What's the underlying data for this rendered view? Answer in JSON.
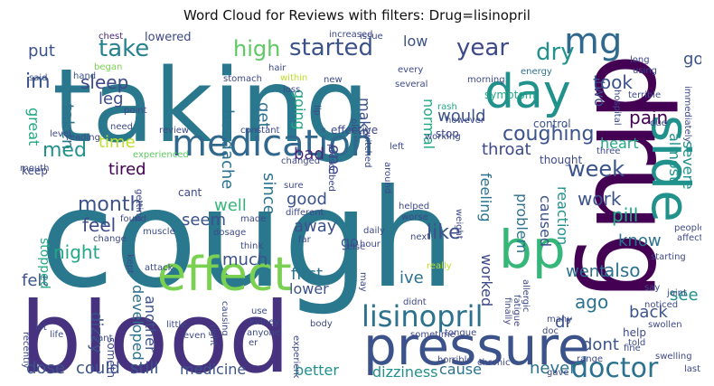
{
  "chart_data": {
    "type": "wordcloud",
    "title": "Word Cloud for Reviews with filters: Drug=lisinopril",
    "colormap": "viridis",
    "background": "#ffffff",
    "words": [
      {
        "text": "cough",
        "color": "#2a788e"
      },
      {
        "text": "taking",
        "color": "#2a788e"
      },
      {
        "text": "blood",
        "color": "#46327e"
      },
      {
        "text": "drug",
        "color": "#440154"
      },
      {
        "text": "pressure",
        "color": "#3b528b"
      },
      {
        "text": "medication",
        "color": "#31688e"
      },
      {
        "text": "effect",
        "color": "#7ad151"
      },
      {
        "text": "day",
        "color": "#21918c"
      },
      {
        "text": "side",
        "color": "#21918c"
      },
      {
        "text": "bp",
        "color": "#35b779"
      },
      {
        "text": "mg",
        "color": "#31688e"
      },
      {
        "text": "lisinopril",
        "color": "#2c728e"
      },
      {
        "text": "doctor",
        "color": "#2c728e"
      },
      {
        "text": "coughing",
        "color": "#3b528b"
      },
      {
        "text": "started",
        "color": "#3b528b"
      },
      {
        "text": "year",
        "color": "#3e4989"
      },
      {
        "text": "dry",
        "color": "#21918c"
      },
      {
        "text": "pain",
        "color": "#440154"
      },
      {
        "text": "take",
        "color": "#26828e"
      },
      {
        "text": "week",
        "color": "#3b528b"
      },
      {
        "text": "month",
        "color": "#3b528b"
      },
      {
        "text": "high",
        "color": "#5ec962"
      },
      {
        "text": "sleep",
        "color": "#3e4989"
      },
      {
        "text": "headache",
        "color": "#2c728e"
      },
      {
        "text": "im",
        "color": "#3b528b"
      },
      {
        "text": "put",
        "color": "#3b528b"
      },
      {
        "text": "leg",
        "color": "#3e4989"
      },
      {
        "text": "taken",
        "color": "#2c728e"
      },
      {
        "text": "med",
        "color": "#21918c"
      },
      {
        "text": "great",
        "color": "#22a884"
      },
      {
        "text": "time",
        "color": "#bddf26"
      },
      {
        "text": "feel",
        "color": "#3e4989"
      },
      {
        "text": "tired",
        "color": "#440154"
      },
      {
        "text": "well",
        "color": "#35b779"
      },
      {
        "text": "seem",
        "color": "#3b528b"
      },
      {
        "text": "away",
        "color": "#3b528b"
      },
      {
        "text": "good",
        "color": "#3b528b"
      },
      {
        "text": "bad",
        "color": "#482878"
      },
      {
        "text": "like",
        "color": "#3b528b"
      },
      {
        "text": "one",
        "color": "#3e4989"
      },
      {
        "text": "since",
        "color": "#2c728e"
      },
      {
        "text": "get",
        "color": "#2c728e"
      },
      {
        "text": "going",
        "color": "#22a884"
      },
      {
        "text": "make",
        "color": "#3b528b"
      },
      {
        "text": "would",
        "color": "#3b528b"
      },
      {
        "text": "normal",
        "color": "#22a884"
      },
      {
        "text": "throat",
        "color": "#3e4989"
      },
      {
        "text": "heart",
        "color": "#22a884"
      },
      {
        "text": "took",
        "color": "#3b528b"
      },
      {
        "text": "got",
        "color": "#3b528b"
      },
      {
        "text": "two",
        "color": "#3e4989"
      },
      {
        "text": "almost",
        "color": "#21918c"
      },
      {
        "text": "severe",
        "color": "#21918c"
      },
      {
        "text": "work",
        "color": "#3b528b"
      },
      {
        "text": "pill",
        "color": "#22a884"
      },
      {
        "text": "know",
        "color": "#2c728e"
      },
      {
        "text": "reaction",
        "color": "#21918c"
      },
      {
        "text": "caused",
        "color": "#3b528b"
      },
      {
        "text": "problem",
        "color": "#2c728e"
      },
      {
        "text": "feeling",
        "color": "#2c728e"
      },
      {
        "text": "worked",
        "color": "#3e4989"
      },
      {
        "text": "also",
        "color": "#2c728e"
      },
      {
        "text": "went",
        "color": "#2c728e"
      },
      {
        "text": "ago",
        "color": "#2c728e"
      },
      {
        "text": "dr",
        "color": "#3b528b"
      },
      {
        "text": "dont",
        "color": "#3b528b"
      },
      {
        "text": "back",
        "color": "#3b528b"
      },
      {
        "text": "see",
        "color": "#21918c"
      },
      {
        "text": "never",
        "color": "#2c728e"
      },
      {
        "text": "cause",
        "color": "#2c728e"
      },
      {
        "text": "dizziness",
        "color": "#21918c"
      },
      {
        "text": "better",
        "color": "#21918c"
      },
      {
        "text": "medicine",
        "color": "#3b528b"
      },
      {
        "text": "still",
        "color": "#3b528b"
      },
      {
        "text": "could",
        "color": "#3b528b"
      },
      {
        "text": "dose",
        "color": "#3b528b"
      },
      {
        "text": "dizzy",
        "color": "#3b528b"
      },
      {
        "text": "another",
        "color": "#3b528b"
      },
      {
        "text": "developed",
        "color": "#2c728e"
      },
      {
        "text": "night",
        "color": "#22a884"
      },
      {
        "text": "felt",
        "color": "#3b528b"
      },
      {
        "text": "stopped",
        "color": "#22a884"
      },
      {
        "text": "much",
        "color": "#3b528b"
      },
      {
        "text": "first",
        "color": "#2c728e"
      },
      {
        "text": "lower",
        "color": "#3b528b"
      },
      {
        "text": "ive",
        "color": "#2c728e"
      },
      {
        "text": "go",
        "color": "#3b528b"
      },
      {
        "text": "cant",
        "color": "#3e4989"
      },
      {
        "text": "keep",
        "color": "#3e4989"
      },
      {
        "text": "lowered",
        "color": "#3e4989"
      },
      {
        "text": "chest",
        "color": "#482878"
      },
      {
        "text": "began",
        "color": "#7ad151"
      },
      {
        "text": "said",
        "color": "#3b528b"
      },
      {
        "text": "hand",
        "color": "#3b528b"
      },
      {
        "text": "stomach",
        "color": "#3e4989"
      },
      {
        "text": "within",
        "color": "#bddf26"
      },
      {
        "text": "issue",
        "color": "#3e4989"
      },
      {
        "text": "low",
        "color": "#3b528b"
      },
      {
        "text": "every",
        "color": "#3e4989"
      },
      {
        "text": "energy",
        "color": "#2c728e"
      },
      {
        "text": "morning",
        "color": "#3e4989"
      },
      {
        "text": "long",
        "color": "#3e4989"
      },
      {
        "text": "using",
        "color": "#3e4989"
      },
      {
        "text": "symptom",
        "color": "#22a884"
      },
      {
        "text": "several",
        "color": "#3e4989"
      },
      {
        "text": "rash",
        "color": "#22a884"
      },
      {
        "text": "however",
        "color": "#3e4989"
      },
      {
        "text": "working",
        "color": "#3e4989"
      },
      {
        "text": "control",
        "color": "#3b528b"
      },
      {
        "text": "hospital",
        "color": "#3e4989"
      },
      {
        "text": "terrible",
        "color": "#3e4989"
      },
      {
        "text": "due",
        "color": "#3e4989"
      },
      {
        "text": "immediately",
        "color": "#3e4989"
      },
      {
        "text": "point",
        "color": "#3e4989"
      },
      {
        "text": "reading",
        "color": "#3e4989"
      },
      {
        "text": "need",
        "color": "#3e4989"
      },
      {
        "text": "level",
        "color": "#3e4989"
      },
      {
        "text": "review",
        "color": "#3e4989"
      },
      {
        "text": "constant",
        "color": "#3e4989"
      },
      {
        "text": "prescribed",
        "color": "#3e4989"
      },
      {
        "text": "experienced",
        "color": "#5ec962"
      },
      {
        "text": "getting",
        "color": "#3e4989"
      },
      {
        "text": "changed",
        "color": "#3e4989"
      },
      {
        "text": "sure",
        "color": "#3e4989"
      },
      {
        "text": "different",
        "color": "#3e4989"
      },
      {
        "text": "made",
        "color": "#3e4989"
      },
      {
        "text": "think",
        "color": "#3e4989"
      },
      {
        "text": "far",
        "color": "#3e4989"
      },
      {
        "text": "else",
        "color": "#3e4989"
      },
      {
        "text": "really",
        "color": "#bddf26"
      },
      {
        "text": "may",
        "color": "#3e4989"
      },
      {
        "text": "didnt",
        "color": "#3e4989"
      },
      {
        "text": "tongue",
        "color": "#3e4989"
      },
      {
        "text": "sometime",
        "color": "#3e4989"
      },
      {
        "text": "horrible",
        "color": "#3e4989"
      },
      {
        "text": "chronic",
        "color": "#3e4989"
      },
      {
        "text": "many",
        "color": "#3e4989"
      },
      {
        "text": "doc",
        "color": "#3e4989"
      },
      {
        "text": "range",
        "color": "#3e4989"
      },
      {
        "text": "help",
        "color": "#3e4989"
      },
      {
        "text": "fine",
        "color": "#3e4989"
      },
      {
        "text": "told",
        "color": "#3e4989"
      },
      {
        "text": "swelling",
        "color": "#3e4989"
      },
      {
        "text": "gave",
        "color": "#3e4989"
      },
      {
        "text": "last",
        "color": "#3e4989"
      },
      {
        "text": "swollen",
        "color": "#3e4989"
      },
      {
        "text": "noticed",
        "color": "#3e4989"
      },
      {
        "text": "joint",
        "color": "#3e4989"
      },
      {
        "text": "say",
        "color": "#3e4989"
      },
      {
        "text": "allergic",
        "color": "#3e4989"
      },
      {
        "text": "fatigue",
        "color": "#3e4989"
      },
      {
        "text": "finally",
        "color": "#3e4989"
      },
      {
        "text": "people",
        "color": "#3e4989"
      },
      {
        "text": "affect",
        "color": "#3e4989"
      },
      {
        "text": "starting",
        "color": "#3e4989"
      },
      {
        "text": "next",
        "color": "#3e4989"
      },
      {
        "text": "weight",
        "color": "#3e4989"
      },
      {
        "text": "helped",
        "color": "#3e4989"
      },
      {
        "text": "worse",
        "color": "#3e4989"
      },
      {
        "text": "daily",
        "color": "#3e4989"
      },
      {
        "text": "hour",
        "color": "#3e4989"
      },
      {
        "text": "thought",
        "color": "#3e4989"
      },
      {
        "text": "three",
        "color": "#3e4989"
      },
      {
        "text": "left",
        "color": "#3e4989"
      },
      {
        "text": "stop",
        "color": "#3e4989"
      },
      {
        "text": "effective",
        "color": "#3e4989"
      },
      {
        "text": "old",
        "color": "#3e4989"
      },
      {
        "text": "switched",
        "color": "#3e4989"
      },
      {
        "text": "new",
        "color": "#3e4989"
      },
      {
        "text": "lip",
        "color": "#3e4989"
      },
      {
        "text": "hair",
        "color": "#3e4989"
      },
      {
        "text": "loss",
        "color": "#3e4989"
      },
      {
        "text": "around",
        "color": "#3e4989"
      },
      {
        "text": "increased",
        "color": "#3e4989"
      },
      {
        "text": "mouth",
        "color": "#3e4989"
      },
      {
        "text": "found",
        "color": "#3e4989"
      },
      {
        "text": "change",
        "color": "#3e4989"
      },
      {
        "text": "dosage",
        "color": "#3e4989"
      },
      {
        "text": "muscle",
        "color": "#3e4989"
      },
      {
        "text": "kept",
        "color": "#3e4989"
      },
      {
        "text": "attack",
        "color": "#3e4989"
      },
      {
        "text": "causing",
        "color": "#3e4989"
      },
      {
        "text": "something",
        "color": "#3e4989"
      },
      {
        "text": "recently",
        "color": "#3e4989"
      },
      {
        "text": "lot",
        "color": "#3e4989"
      },
      {
        "text": "life",
        "color": "#3e4989"
      },
      {
        "text": "want",
        "color": "#3e4989"
      },
      {
        "text": "little",
        "color": "#3e4989"
      },
      {
        "text": "right",
        "color": "#3e4989"
      },
      {
        "text": "use",
        "color": "#3e4989"
      },
      {
        "text": "kidney",
        "color": "#3e4989"
      },
      {
        "text": "anyone",
        "color": "#3e4989"
      },
      {
        "text": "even",
        "color": "#3e4989"
      },
      {
        "text": "er",
        "color": "#3e4989"
      },
      {
        "text": "body",
        "color": "#3e4989"
      },
      {
        "text": "experience",
        "color": "#3e4989"
      }
    ]
  }
}
